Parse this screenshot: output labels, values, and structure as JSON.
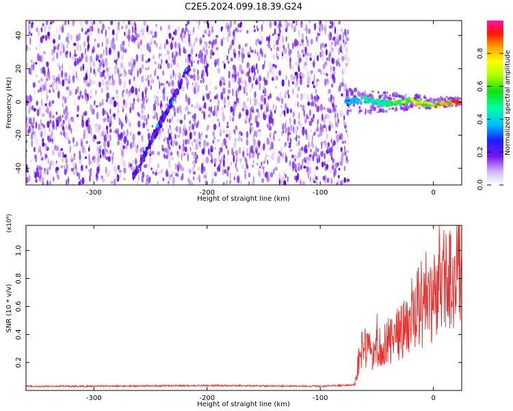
{
  "title": "C2E5.2024.099.18.39.G24",
  "chart_data": [
    {
      "type": "heatmap",
      "xlabel": "Height of straight line (km)",
      "ylabel": "Frequency (Hz)",
      "xlim": [
        -360,
        25
      ],
      "ylim": [
        -50,
        49
      ],
      "xticks": [
        -300,
        -200,
        -100,
        0
      ],
      "yticks": [
        -40,
        -20,
        0,
        20,
        40
      ],
      "colorbar": {
        "label": "Normalized spectral amplitude",
        "range": [
          0,
          1
        ],
        "ticks": [
          "0.0",
          "0.2",
          "0.4",
          "0.6",
          "0.8"
        ],
        "colormap": "rainbow (white/purple low to red/magenta high)"
      },
      "features": {
        "noise_region_x": [
          -360,
          -75
        ],
        "diagonal_trace": {
          "x": [
            -265,
            -215
          ],
          "y": [
            -45,
            22
          ]
        },
        "carrier_signal": {
          "x_start": -78,
          "x_end": 25,
          "y": [
            0,
            0
          ]
        }
      },
      "grid": false
    },
    {
      "type": "line",
      "xlabel": "Height of straight line (km)",
      "ylabel": "SNR (10 * v/v)",
      "y_multiplier": "(x10⁴)",
      "xlim": [
        -360,
        25
      ],
      "ylim": [
        0,
        1.18
      ],
      "xticks": [
        -300,
        -200,
        -100,
        0
      ],
      "yticks": [
        "0.2",
        "0.4",
        "0.6",
        "0.8",
        "1.0"
      ],
      "series": [
        {
          "color": "#e8312f",
          "x": [
            -360,
            -300,
            -200,
            -100,
            -70,
            -65,
            -60,
            -55,
            -50,
            -45,
            -40,
            -35,
            -30,
            -25,
            -20,
            -15,
            -10,
            -5,
            0,
            5,
            10,
            15,
            20,
            25
          ],
          "y": [
            0.03,
            0.03,
            0.035,
            0.03,
            0.04,
            0.25,
            0.35,
            0.3,
            0.38,
            0.35,
            0.42,
            0.4,
            0.48,
            0.5,
            0.55,
            0.58,
            0.65,
            0.7,
            0.75,
            0.82,
            0.9,
            0.95,
            1.0,
            1.08
          ]
        }
      ],
      "grid": false
    }
  ]
}
